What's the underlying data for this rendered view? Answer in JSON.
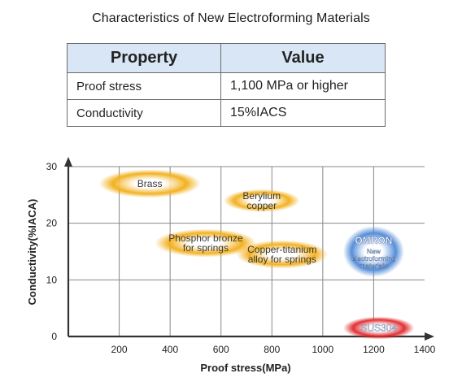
{
  "title": "Characteristics of New Electroforming Materials",
  "table": {
    "headers": [
      "Property",
      "Value"
    ],
    "rows": [
      [
        "Proof stress",
        "1,100 MPa or higher"
      ],
      [
        "Conductivity",
        "15%IACS"
      ]
    ]
  },
  "chart_data": {
    "type": "scatter",
    "xlabel": "Proof stress(MPa)",
    "ylabel": "Conductivity(%IACA)",
    "xlim": [
      0,
      1400
    ],
    "ylim": [
      0,
      30
    ],
    "x_ticks": [
      200,
      400,
      600,
      800,
      1000,
      1200,
      1400
    ],
    "y_ticks": [
      0,
      10,
      20,
      30
    ],
    "grid": true,
    "series": [
      {
        "name": "Brass",
        "x": 320,
        "y": 27,
        "x_range": [
          120,
          520
        ],
        "y_range": [
          24.5,
          29.5
        ],
        "color": "#f2ad14",
        "label_lines": [
          "Brass"
        ]
      },
      {
        "name": "Berylium copper",
        "x": 760,
        "y": 24,
        "x_range": [
          610,
          910
        ],
        "y_range": [
          22,
          26
        ],
        "color": "#f2ad14",
        "label_lines": [
          "Berylium",
          "copper"
        ]
      },
      {
        "name": "Phosphor bronze for springs",
        "x": 540,
        "y": 16.5,
        "x_range": [
          340,
          740
        ],
        "y_range": [
          14,
          19
        ],
        "color": "#f2ad14",
        "label_lines": [
          "Phosphor bronze",
          "for springs"
        ]
      },
      {
        "name": "Copper-titanium alloy for springs",
        "x": 840,
        "y": 14.5,
        "x_range": [
          660,
          1020
        ],
        "y_range": [
          12,
          17
        ],
        "color": "#f2ad14",
        "label_lines": [
          "Copper-titanium",
          "alloy for springs"
        ]
      },
      {
        "name": "OMRON New electroforming materials",
        "x": 1200,
        "y": 15,
        "x_range": [
          1080,
          1320
        ],
        "y_range": [
          10.5,
          19.5
        ],
        "color": "#4d88d6",
        "label_lines": [
          "OMRON",
          "New",
          "electroforming",
          "materials"
        ]
      },
      {
        "name": "SUS304",
        "x": 1220,
        "y": 1.5,
        "x_range": [
          1080,
          1360
        ],
        "y_range": [
          -0.5,
          3.5
        ],
        "color": "#e0252a",
        "label_lines": [
          "SUS304"
        ]
      }
    ]
  }
}
